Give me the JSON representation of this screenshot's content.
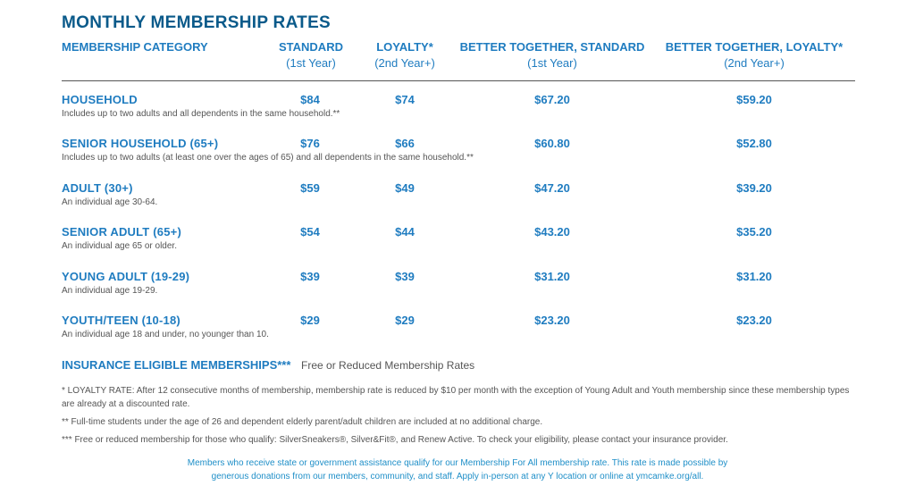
{
  "title": "MONTHLY MEMBERSHIP RATES",
  "columns": [
    {
      "line1": "MEMBERSHIP CATEGORY",
      "line2": ""
    },
    {
      "line1": "STANDARD",
      "line2": "(1st Year)"
    },
    {
      "line1": "LOYALTY*",
      "line2": "(2nd Year+)"
    },
    {
      "line1": "BETTER TOGETHER, STANDARD",
      "line2": "(1st Year)"
    },
    {
      "line1": "BETTER TOGETHER, LOYALTY*",
      "line2": "(2nd Year+)"
    }
  ],
  "rows": [
    {
      "name": "HOUSEHOLD",
      "desc": "Includes up to two adults and all dependents in the same household.**",
      "standard": "$84",
      "loyalty": "$74",
      "bt_standard": "$67.20",
      "bt_loyalty": "$59.20"
    },
    {
      "name": "SENIOR HOUSEHOLD (65+)",
      "desc": "Includes up to two adults (at least one over the ages of 65) and all dependents in the same household.**",
      "standard": "$76",
      "loyalty": "$66",
      "bt_standard": "$60.80",
      "bt_loyalty": "$52.80"
    },
    {
      "name": "ADULT (30+)",
      "desc": "An individual age 30-64.",
      "standard": "$59",
      "loyalty": "$49",
      "bt_standard": "$47.20",
      "bt_loyalty": "$39.20"
    },
    {
      "name": "SENIOR ADULT (65+)",
      "desc": "An individual age 65 or older.",
      "standard": "$54",
      "loyalty": "$44",
      "bt_standard": "$43.20",
      "bt_loyalty": "$35.20"
    },
    {
      "name": "YOUNG ADULT (19-29)",
      "desc": "An individual age 19-29.",
      "standard": "$39",
      "loyalty": "$39",
      "bt_standard": "$31.20",
      "bt_loyalty": "$31.20"
    },
    {
      "name": "YOUTH/TEEN (10-18)",
      "desc": "An individual age 18 and under, no younger than 10.",
      "standard": "$29",
      "loyalty": "$29",
      "bt_standard": "$23.20",
      "bt_loyalty": "$23.20"
    }
  ],
  "insurance": {
    "label": "INSURANCE ELIGIBLE MEMBERSHIPS***",
    "note": "Free or Reduced Membership Rates"
  },
  "footnotes": [
    "* LOYALTY RATE: After 12 consecutive months of membership, membership rate is reduced by $10 per month with the exception of Young Adult and Youth membership since these membership types are already at a discounted rate.",
    "** Full-time students under the age of 26 and dependent elderly parent/adult children are included at no additional charge.",
    "*** Free or reduced membership for those who qualify: SilverSneakers®, Silver&Fit®, and Renew Active. To check your eligibility, please contact your insurance provider."
  ],
  "bottom_note": {
    "line1": "Members who receive state or government assistance qualify for our Membership For All membership rate. This rate is made possible by",
    "line2": "generous donations from our members, community, and staff. Apply in-person at any Y location or online at ymcamke.org/all."
  }
}
